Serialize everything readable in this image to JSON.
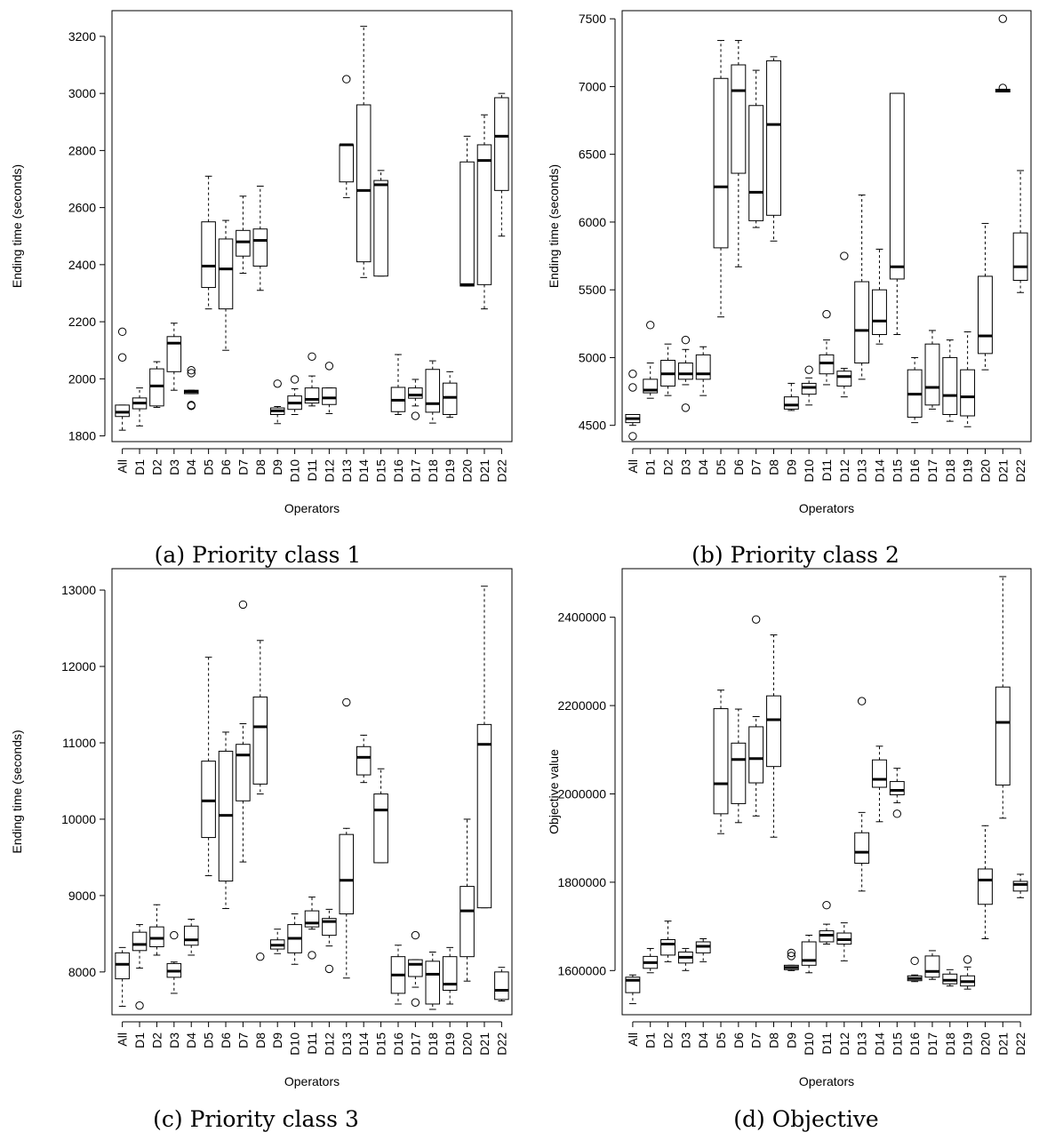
{
  "chart_data": [
    {
      "type": "boxplot",
      "caption": "(a) Priority class 1",
      "xlabel": "Operators",
      "ylabel": "Ending time (seconds)",
      "ylim": [
        1780,
        3290
      ],
      "yticks": [
        1800,
        2000,
        2200,
        2400,
        2600,
        2800,
        3000,
        3200
      ],
      "categories": [
        "All",
        "D1",
        "D2",
        "D3",
        "D4",
        "D5",
        "D6",
        "D7",
        "D8",
        "D9",
        "D10",
        "D11",
        "D12",
        "D13",
        "D14",
        "D15",
        "D16",
        "D17",
        "D18",
        "D19",
        "D20",
        "D21",
        "D22"
      ],
      "boxes": [
        {
          "min": 1820,
          "q1": 1868,
          "median": 1883,
          "q3": 1908,
          "max": 1908,
          "outliers": [
            2075,
            2165
          ]
        },
        {
          "min": 1835,
          "q1": 1895,
          "median": 1915,
          "q3": 1933,
          "max": 1968,
          "outliers": []
        },
        {
          "min": 1900,
          "q1": 1905,
          "median": 1975,
          "q3": 2035,
          "max": 2060,
          "outliers": []
        },
        {
          "min": 1960,
          "q1": 2025,
          "median": 2125,
          "q3": 2148,
          "max": 2195,
          "outliers": []
        },
        {
          "min": 1948,
          "q1": 1948,
          "median": 1955,
          "q3": 1960,
          "max": 1960,
          "outliers": [
            1905,
            1908,
            2020,
            2030
          ]
        },
        {
          "min": 2245,
          "q1": 2320,
          "median": 2395,
          "q3": 2550,
          "max": 2710,
          "outliers": []
        },
        {
          "min": 2100,
          "q1": 2245,
          "median": 2385,
          "q3": 2490,
          "max": 2555,
          "outliers": []
        },
        {
          "min": 2370,
          "q1": 2430,
          "median": 2480,
          "q3": 2520,
          "max": 2640,
          "outliers": []
        },
        {
          "min": 2310,
          "q1": 2395,
          "median": 2485,
          "q3": 2525,
          "max": 2675,
          "outliers": []
        },
        {
          "min": 1843,
          "q1": 1875,
          "median": 1888,
          "q3": 1898,
          "max": 1903,
          "outliers": [
            1983
          ]
        },
        {
          "min": 1875,
          "q1": 1893,
          "median": 1915,
          "q3": 1940,
          "max": 1965,
          "outliers": [
            1998
          ]
        },
        {
          "min": 1905,
          "q1": 1915,
          "median": 1928,
          "q3": 1968,
          "max": 2010,
          "outliers": [
            2078
          ]
        },
        {
          "min": 1878,
          "q1": 1910,
          "median": 1933,
          "q3": 1968,
          "max": 1968,
          "outliers": [
            2045
          ]
        },
        {
          "min": 2635,
          "q1": 2690,
          "median": 2820,
          "q3": 2820,
          "max": 2820,
          "outliers": [
            3050
          ]
        },
        {
          "min": 2355,
          "q1": 2410,
          "median": 2660,
          "q3": 2960,
          "max": 3235,
          "outliers": []
        },
        {
          "min": 2360,
          "q1": 2360,
          "median": 2680,
          "q3": 2695,
          "max": 2730,
          "outliers": []
        },
        {
          "min": 1875,
          "q1": 1885,
          "median": 1925,
          "q3": 1970,
          "max": 2085,
          "outliers": []
        },
        {
          "min": 1905,
          "q1": 1932,
          "median": 1943,
          "q3": 1968,
          "max": 1998,
          "outliers": [
            1870
          ]
        },
        {
          "min": 1845,
          "q1": 1883,
          "median": 1913,
          "q3": 2033,
          "max": 2063,
          "outliers": []
        },
        {
          "min": 1865,
          "q1": 1875,
          "median": 1935,
          "q3": 1985,
          "max": 2025,
          "outliers": []
        },
        {
          "min": 2325,
          "q1": 2325,
          "median": 2330,
          "q3": 2760,
          "max": 2850,
          "outliers": []
        },
        {
          "min": 2245,
          "q1": 2330,
          "median": 2765,
          "q3": 2820,
          "max": 2925,
          "outliers": []
        },
        {
          "min": 2500,
          "q1": 2660,
          "median": 2850,
          "q3": 2985,
          "max": 3000,
          "outliers": []
        }
      ]
    },
    {
      "type": "boxplot",
      "caption": "(b) Priority class 2",
      "xlabel": "Operators",
      "ylabel": "Ending time (seconds)",
      "ylim": [
        4380,
        7560
      ],
      "yticks": [
        4500,
        5000,
        5500,
        6000,
        6500,
        7000,
        7500
      ],
      "categories": [
        "All",
        "D1",
        "D2",
        "D3",
        "D4",
        "D5",
        "D6",
        "D7",
        "D8",
        "D9",
        "D10",
        "D11",
        "D12",
        "D13",
        "D14",
        "D15",
        "D16",
        "D17",
        "D18",
        "D19",
        "D20",
        "D21",
        "D22"
      ],
      "boxes": [
        {
          "min": 4500,
          "q1": 4520,
          "median": 4550,
          "q3": 4580,
          "max": 4580,
          "outliers": [
            4420,
            4780,
            4880
          ]
        },
        {
          "min": 4700,
          "q1": 4740,
          "median": 4760,
          "q3": 4840,
          "max": 4960,
          "outliers": [
            5240
          ]
        },
        {
          "min": 4720,
          "q1": 4790,
          "median": 4880,
          "q3": 4980,
          "max": 5100,
          "outliers": []
        },
        {
          "min": 4800,
          "q1": 4840,
          "median": 4880,
          "q3": 4960,
          "max": 5060,
          "outliers": [
            4630,
            5130
          ]
        },
        {
          "min": 4720,
          "q1": 4840,
          "median": 4880,
          "q3": 5020,
          "max": 5080,
          "outliers": []
        },
        {
          "min": 5300,
          "q1": 5810,
          "median": 6260,
          "q3": 7060,
          "max": 7340,
          "outliers": []
        },
        {
          "min": 5670,
          "q1": 6360,
          "median": 6970,
          "q3": 7160,
          "max": 7340,
          "outliers": []
        },
        {
          "min": 5960,
          "q1": 6010,
          "median": 6220,
          "q3": 6860,
          "max": 7120,
          "outliers": []
        },
        {
          "min": 5860,
          "q1": 6050,
          "median": 6720,
          "q3": 7190,
          "max": 7220,
          "outliers": []
        },
        {
          "min": 4610,
          "q1": 4620,
          "median": 4650,
          "q3": 4710,
          "max": 4810,
          "outliers": []
        },
        {
          "min": 4650,
          "q1": 4730,
          "median": 4780,
          "q3": 4810,
          "max": 4850,
          "outliers": [
            4910
          ]
        },
        {
          "min": 4800,
          "q1": 4880,
          "median": 4960,
          "q3": 5020,
          "max": 5130,
          "outliers": [
            5320
          ]
        },
        {
          "min": 4710,
          "q1": 4790,
          "median": 4860,
          "q3": 4900,
          "max": 4920,
          "outliers": [
            5750
          ]
        },
        {
          "min": 4840,
          "q1": 4960,
          "median": 5200,
          "q3": 5560,
          "max": 6200,
          "outliers": []
        },
        {
          "min": 5100,
          "q1": 5170,
          "median": 5270,
          "q3": 5500,
          "max": 5800,
          "outliers": []
        },
        {
          "min": 5170,
          "q1": 5580,
          "median": 5670,
          "q3": 6950,
          "max": 6950,
          "outliers": []
        },
        {
          "min": 4520,
          "q1": 4560,
          "median": 4730,
          "q3": 4910,
          "max": 5000,
          "outliers": []
        },
        {
          "min": 4620,
          "q1": 4650,
          "median": 4780,
          "q3": 5100,
          "max": 5200,
          "outliers": []
        },
        {
          "min": 4530,
          "q1": 4580,
          "median": 4720,
          "q3": 5000,
          "max": 5130,
          "outliers": []
        },
        {
          "min": 4490,
          "q1": 4570,
          "median": 4710,
          "q3": 4910,
          "max": 5190,
          "outliers": []
        },
        {
          "min": 4910,
          "q1": 5030,
          "median": 5160,
          "q3": 5600,
          "max": 5990,
          "outliers": []
        },
        {
          "min": 6960,
          "q1": 6960,
          "median": 6970,
          "q3": 6980,
          "max": 6980,
          "outliers": [
            7500,
            6990
          ]
        },
        {
          "min": 5480,
          "q1": 5570,
          "median": 5670,
          "q3": 5920,
          "max": 6380,
          "outliers": []
        }
      ]
    },
    {
      "type": "boxplot",
      "caption": "(c) Priority class 3",
      "xlabel": "Operators",
      "ylabel": "Ending time (seconds)",
      "ylim": [
        7440,
        13280
      ],
      "yticks": [
        8000,
        9000,
        10000,
        11000,
        12000,
        13000
      ],
      "categories": [
        "All",
        "D1",
        "D2",
        "D3",
        "D4",
        "D5",
        "D6",
        "D7",
        "D8",
        "D9",
        "D10",
        "D11",
        "D12",
        "D13",
        "D14",
        "D15",
        "D16",
        "D17",
        "D18",
        "D19",
        "D20",
        "D21",
        "D22"
      ],
      "boxes": [
        {
          "min": 7550,
          "q1": 7910,
          "median": 8100,
          "q3": 8250,
          "max": 8320,
          "outliers": []
        },
        {
          "min": 8050,
          "q1": 8280,
          "median": 8360,
          "q3": 8520,
          "max": 8620,
          "outliers": [
            7560
          ]
        },
        {
          "min": 8220,
          "q1": 8330,
          "median": 8440,
          "q3": 8590,
          "max": 8880,
          "outliers": []
        },
        {
          "min": 7720,
          "q1": 7930,
          "median": 8010,
          "q3": 8110,
          "max": 8130,
          "outliers": [
            8480
          ]
        },
        {
          "min": 8220,
          "q1": 8350,
          "median": 8420,
          "q3": 8600,
          "max": 8690,
          "outliers": []
        },
        {
          "min": 9260,
          "q1": 9760,
          "median": 10240,
          "q3": 10760,
          "max": 12120,
          "outliers": []
        },
        {
          "min": 8830,
          "q1": 9190,
          "median": 10050,
          "q3": 10890,
          "max": 11140,
          "outliers": []
        },
        {
          "min": 9440,
          "q1": 10240,
          "median": 10840,
          "q3": 10980,
          "max": 11250,
          "outliers": [
            12810
          ]
        },
        {
          "min": 10330,
          "q1": 10460,
          "median": 11210,
          "q3": 11600,
          "max": 12340,
          "outliers": [
            8200
          ]
        },
        {
          "min": 8240,
          "q1": 8300,
          "median": 8350,
          "q3": 8420,
          "max": 8560,
          "outliers": []
        },
        {
          "min": 8100,
          "q1": 8250,
          "median": 8440,
          "q3": 8620,
          "max": 8760,
          "outliers": []
        },
        {
          "min": 8560,
          "q1": 8590,
          "median": 8640,
          "q3": 8800,
          "max": 8980,
          "outliers": [
            8220
          ]
        },
        {
          "min": 8340,
          "q1": 8480,
          "median": 8660,
          "q3": 8700,
          "max": 8820,
          "outliers": [
            8040
          ]
        },
        {
          "min": 7920,
          "q1": 8760,
          "median": 9200,
          "q3": 9800,
          "max": 9880,
          "outliers": [
            11530
          ]
        },
        {
          "min": 10480,
          "q1": 10580,
          "median": 10810,
          "q3": 10950,
          "max": 11100,
          "outliers": []
        },
        {
          "min": 9430,
          "q1": 9430,
          "median": 10120,
          "q3": 10330,
          "max": 10660,
          "outliers": []
        },
        {
          "min": 7580,
          "q1": 7720,
          "median": 7960,
          "q3": 8200,
          "max": 8350,
          "outliers": []
        },
        {
          "min": 7800,
          "q1": 7940,
          "median": 8100,
          "q3": 8160,
          "max": 8160,
          "outliers": [
            7600,
            8480
          ]
        },
        {
          "min": 7510,
          "q1": 7580,
          "median": 7970,
          "q3": 8140,
          "max": 8260,
          "outliers": []
        },
        {
          "min": 7580,
          "q1": 7760,
          "median": 7840,
          "q3": 8200,
          "max": 8320,
          "outliers": []
        },
        {
          "min": 7880,
          "q1": 8200,
          "median": 8800,
          "q3": 9120,
          "max": 10000,
          "outliers": []
        },
        {
          "min": 8840,
          "q1": 8840,
          "median": 10980,
          "q3": 11240,
          "max": 13050,
          "outliers": []
        },
        {
          "min": 7620,
          "q1": 7640,
          "median": 7760,
          "q3": 8000,
          "max": 8060,
          "outliers": []
        }
      ]
    },
    {
      "type": "boxplot",
      "caption": "(d) Objective",
      "xlabel": "Operators",
      "ylabel": "Objective value",
      "ylim": [
        1500000,
        2510000
      ],
      "yticks": [
        1600000,
        1800000,
        2000000,
        2200000,
        2400000
      ],
      "categories": [
        "All",
        "D1",
        "D2",
        "D3",
        "D4",
        "D5",
        "D6",
        "D7",
        "D8",
        "D9",
        "D10",
        "D11",
        "D12",
        "D13",
        "D14",
        "D15",
        "D16",
        "D17",
        "D18",
        "D19",
        "D20",
        "D21",
        "D22"
      ],
      "boxes": [
        {
          "min": 1525000,
          "q1": 1550000,
          "median": 1578000,
          "q3": 1585000,
          "max": 1590000,
          "outliers": []
        },
        {
          "min": 1595000,
          "q1": 1605000,
          "median": 1618000,
          "q3": 1632000,
          "max": 1650000,
          "outliers": []
        },
        {
          "min": 1620000,
          "q1": 1635000,
          "median": 1660000,
          "q3": 1670000,
          "max": 1712000,
          "outliers": []
        },
        {
          "min": 1600000,
          "q1": 1617000,
          "median": 1630000,
          "q3": 1642000,
          "max": 1650000,
          "outliers": []
        },
        {
          "min": 1620000,
          "q1": 1640000,
          "median": 1655000,
          "q3": 1665000,
          "max": 1672000,
          "outliers": []
        },
        {
          "min": 1910000,
          "q1": 1955000,
          "median": 2023000,
          "q3": 2193000,
          "max": 2235000,
          "outliers": []
        },
        {
          "min": 1935000,
          "q1": 1978000,
          "median": 2078000,
          "q3": 2115000,
          "max": 2192000,
          "outliers": []
        },
        {
          "min": 1950000,
          "q1": 2025000,
          "median": 2080000,
          "q3": 2152000,
          "max": 2175000,
          "outliers": [
            2395000
          ]
        },
        {
          "min": 1902000,
          "q1": 2062000,
          "median": 2168000,
          "q3": 2222000,
          "max": 2360000,
          "outliers": []
        },
        {
          "min": 1600000,
          "q1": 1602000,
          "median": 1607000,
          "q3": 1612000,
          "max": 1612000,
          "outliers": [
            1633000,
            1640000
          ]
        },
        {
          "min": 1595000,
          "q1": 1612000,
          "median": 1623000,
          "q3": 1665000,
          "max": 1680000,
          "outliers": []
        },
        {
          "min": 1660000,
          "q1": 1665000,
          "median": 1680000,
          "q3": 1690000,
          "max": 1705000,
          "outliers": [
            1748000
          ]
        },
        {
          "min": 1622000,
          "q1": 1660000,
          "median": 1670000,
          "q3": 1685000,
          "max": 1708000,
          "outliers": []
        },
        {
          "min": 1780000,
          "q1": 1843000,
          "median": 1868000,
          "q3": 1912000,
          "max": 1958000,
          "outliers": [
            2210000
          ]
        },
        {
          "min": 1937000,
          "q1": 2015000,
          "median": 2033000,
          "q3": 2077000,
          "max": 2108000,
          "outliers": []
        },
        {
          "min": 1980000,
          "q1": 1998000,
          "median": 2008000,
          "q3": 2028000,
          "max": 2058000,
          "outliers": [
            1955000
          ]
        },
        {
          "min": 1575000,
          "q1": 1577000,
          "median": 1582000,
          "q3": 1588000,
          "max": 1590000,
          "outliers": [
            1622000
          ]
        },
        {
          "min": 1580000,
          "q1": 1585000,
          "median": 1598000,
          "q3": 1633000,
          "max": 1645000,
          "outliers": []
        },
        {
          "min": 1565000,
          "q1": 1570000,
          "median": 1578000,
          "q3": 1592000,
          "max": 1602000,
          "outliers": []
        },
        {
          "min": 1558000,
          "q1": 1565000,
          "median": 1575000,
          "q3": 1588000,
          "max": 1608000,
          "outliers": [
            1625000
          ]
        },
        {
          "min": 1672000,
          "q1": 1750000,
          "median": 1805000,
          "q3": 1830000,
          "max": 1928000,
          "outliers": []
        },
        {
          "min": 1945000,
          "q1": 2020000,
          "median": 2162000,
          "q3": 2242000,
          "max": 2492000,
          "outliers": []
        },
        {
          "min": 1765000,
          "q1": 1780000,
          "median": 1795000,
          "q3": 1802000,
          "max": 1818000,
          "outliers": []
        }
      ]
    }
  ]
}
